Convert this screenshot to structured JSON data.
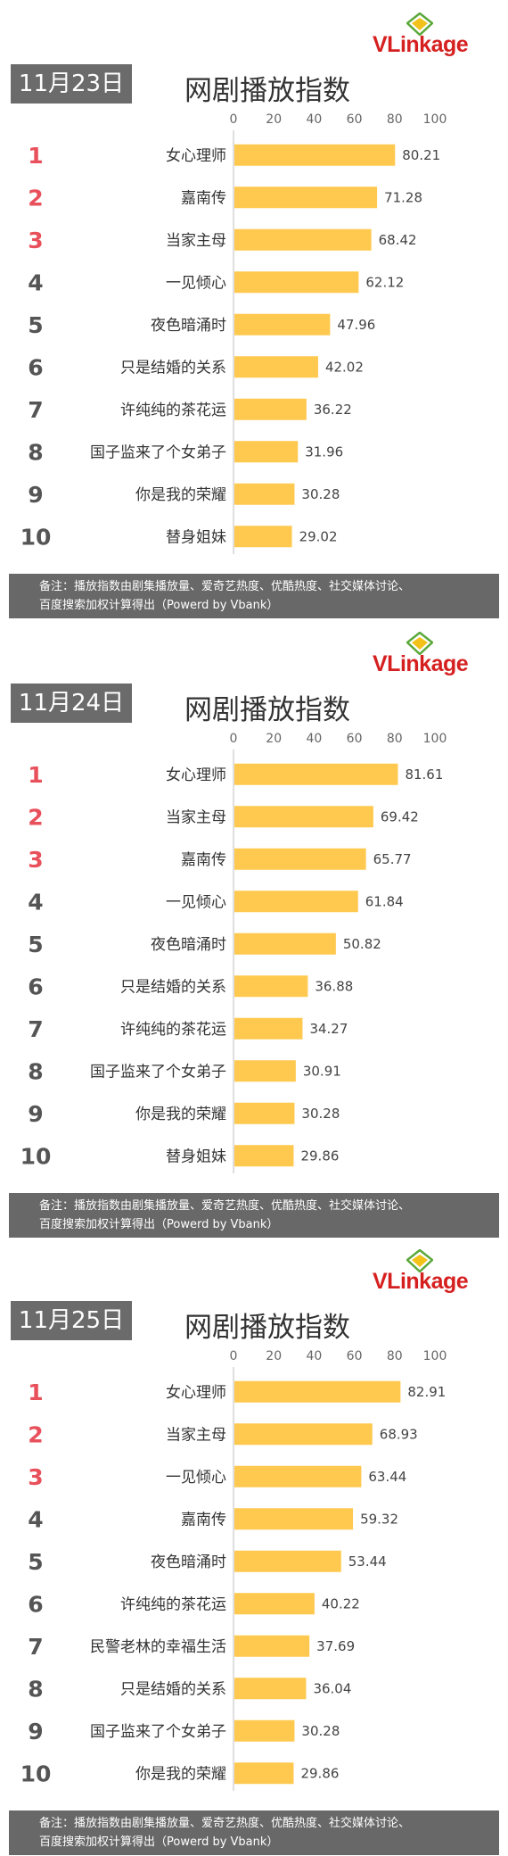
{
  "brand": "VLinkage",
  "title": "网剧播放指数",
  "note_line1": "备注：播放指数由剧集播放量、爱奇艺热度、优酷热度、社交媒体讨论、",
  "note_line2": "百度搜索加权计算得出（Powerd by Vbank）",
  "colors": {
    "bar": "#ffc94f",
    "rank_top": "#e8505b",
    "rank_other": "#555555",
    "badge": "#6b6b6b",
    "note_bg": "#686868"
  },
  "chart_data": [
    {
      "type": "bar",
      "date": "11月23日",
      "title": "网剧播放指数",
      "xlim": [
        0,
        100
      ],
      "ticks": [
        "0",
        "20",
        "40",
        "60",
        "80",
        "100"
      ],
      "ranks": [
        "1",
        "2",
        "3",
        "4",
        "5",
        "6",
        "7",
        "8",
        "9",
        "10"
      ],
      "categories": [
        "女心理师",
        "嘉南传",
        "当家主母",
        "一见倾心",
        "夜色暗涌时",
        "只是结婚的关系",
        "许纯纯的茶花运",
        "国子监来了个女弟子",
        "你是我的荣耀",
        "替身姐妹"
      ],
      "values": [
        80.21,
        71.28,
        68.42,
        62.12,
        47.96,
        42.02,
        36.22,
        31.96,
        30.28,
        29.02
      ],
      "labels": [
        "80.21",
        "71.28",
        "68.42",
        "62.12",
        "47.96",
        "42.02",
        "36.22",
        "31.96",
        "30.28",
        "29.02"
      ]
    },
    {
      "type": "bar",
      "date": "11月24日",
      "title": "网剧播放指数",
      "xlim": [
        0,
        100
      ],
      "ticks": [
        "0",
        "20",
        "40",
        "60",
        "80",
        "100"
      ],
      "ranks": [
        "1",
        "2",
        "3",
        "4",
        "5",
        "6",
        "7",
        "8",
        "9",
        "10"
      ],
      "categories": [
        "女心理师",
        "当家主母",
        "嘉南传",
        "一见倾心",
        "夜色暗涌时",
        "只是结婚的关系",
        "许纯纯的茶花运",
        "国子监来了个女弟子",
        "你是我的荣耀",
        "替身姐妹"
      ],
      "values": [
        81.61,
        69.42,
        65.77,
        61.84,
        50.82,
        36.88,
        34.27,
        30.91,
        30.28,
        29.86
      ],
      "labels": [
        "81.61",
        "69.42",
        "65.77",
        "61.84",
        "50.82",
        "36.88",
        "34.27",
        "30.91",
        "30.28",
        "29.86"
      ]
    },
    {
      "type": "bar",
      "date": "11月25日",
      "title": "网剧播放指数",
      "xlim": [
        0,
        100
      ],
      "ticks": [
        "0",
        "20",
        "40",
        "60",
        "80",
        "100"
      ],
      "ranks": [
        "1",
        "2",
        "3",
        "4",
        "5",
        "6",
        "7",
        "8",
        "9",
        "10"
      ],
      "categories": [
        "女心理师",
        "当家主母",
        "一见倾心",
        "嘉南传",
        "夜色暗涌时",
        "许纯纯的茶花运",
        "民警老林的幸福生活",
        "只是结婚的关系",
        "国子监来了个女弟子",
        "你是我的荣耀"
      ],
      "values": [
        82.91,
        68.93,
        63.44,
        59.32,
        53.44,
        40.22,
        37.69,
        36.04,
        30.28,
        29.86
      ],
      "labels": [
        "82.91",
        "68.93",
        "63.44",
        "59.32",
        "53.44",
        "40.22",
        "37.69",
        "36.04",
        "30.28",
        "29.86"
      ]
    }
  ]
}
